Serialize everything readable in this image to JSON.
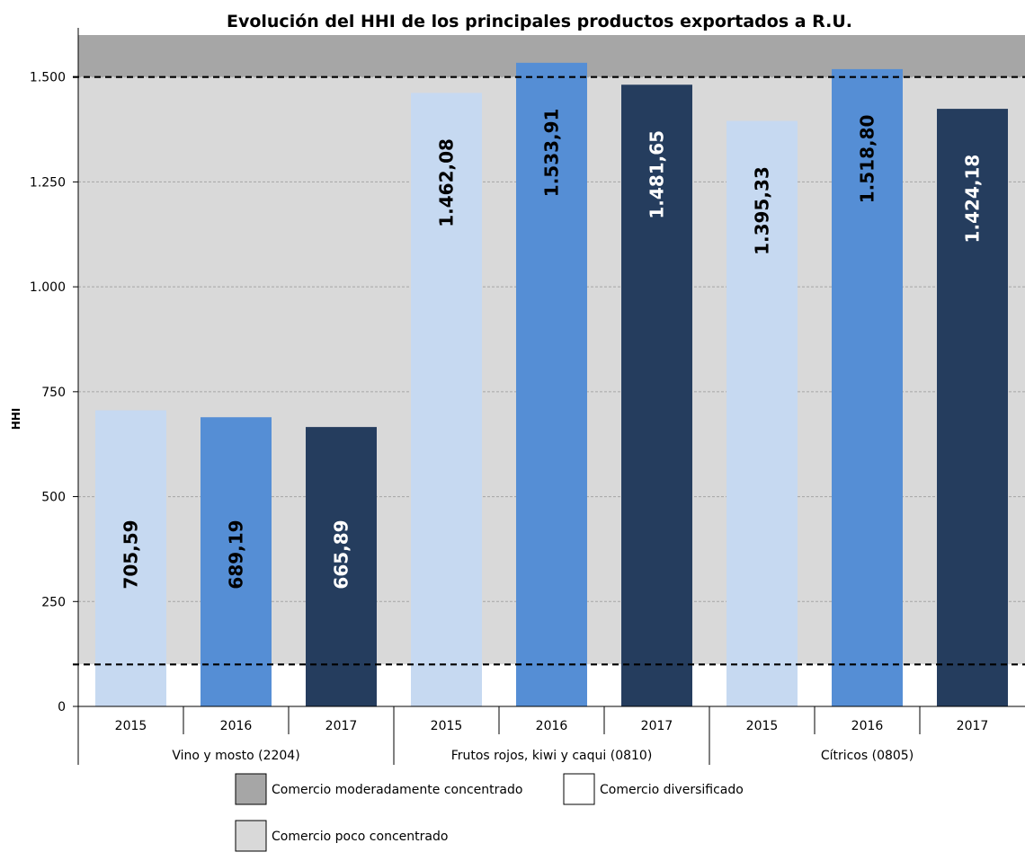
{
  "chart_data": {
    "type": "bar",
    "title": "Evolución del HHI de los principales productos exportados a R.U.",
    "ylabel": "HHI",
    "ylim": [
      0,
      1600
    ],
    "yticks": [
      0,
      250,
      500,
      750,
      1000,
      1250,
      1500
    ],
    "ytick_labels": [
      "0",
      "250",
      "500",
      "750",
      "1.000",
      "1.250",
      "1.500"
    ],
    "thresholds": [
      100,
      1500
    ],
    "groups": [
      {
        "name": "Vino y mosto (2204)",
        "bars": [
          {
            "year": "2015",
            "value": 705.59,
            "label": "705,59",
            "color": "#c6d9f1"
          },
          {
            "year": "2016",
            "value": 689.19,
            "label": "689,19",
            "color": "#558ed5"
          },
          {
            "year": "2017",
            "value": 665.89,
            "label": "665,89",
            "color": "#253d5e"
          }
        ]
      },
      {
        "name": "Frutos rojos, kiwi y caqui (0810)",
        "bars": [
          {
            "year": "2015",
            "value": 1462.08,
            "label": "1.462,08",
            "color": "#c6d9f1"
          },
          {
            "year": "2016",
            "value": 1533.91,
            "label": "1.533,91",
            "color": "#558ed5"
          },
          {
            "year": "2017",
            "value": 1481.65,
            "label": "1.481,65",
            "color": "#253d5e"
          }
        ]
      },
      {
        "name": "Cítricos (0805)",
        "bars": [
          {
            "year": "2015",
            "value": 1395.33,
            "label": "1.395,33",
            "color": "#c6d9f1"
          },
          {
            "year": "2016",
            "value": 1518.8,
            "label": "1.518,80",
            "color": "#558ed5"
          },
          {
            "year": "2017",
            "value": 1424.18,
            "label": "1.424,18",
            "color": "#253d5e"
          }
        ]
      }
    ],
    "bands": [
      {
        "name": "Comercio moderadamente concentrado",
        "from": 1500,
        "to": 1600,
        "color": "#a6a6a6"
      },
      {
        "name": "Comercio poco concentrado",
        "from": 100,
        "to": 1500,
        "color": "#d9d9d9"
      },
      {
        "name": "Comercio diversificado",
        "from": 0,
        "to": 100,
        "color": "#ffffff"
      }
    ],
    "legend": [
      {
        "label": "Comercio moderadamente concentrado",
        "color": "#a6a6a6"
      },
      {
        "label": "Comercio diversificado",
        "color": "#ffffff"
      },
      {
        "label": "Comercio poco concentrado",
        "color": "#d9d9d9"
      }
    ],
    "legend_position": "bottom",
    "grid": true
  }
}
